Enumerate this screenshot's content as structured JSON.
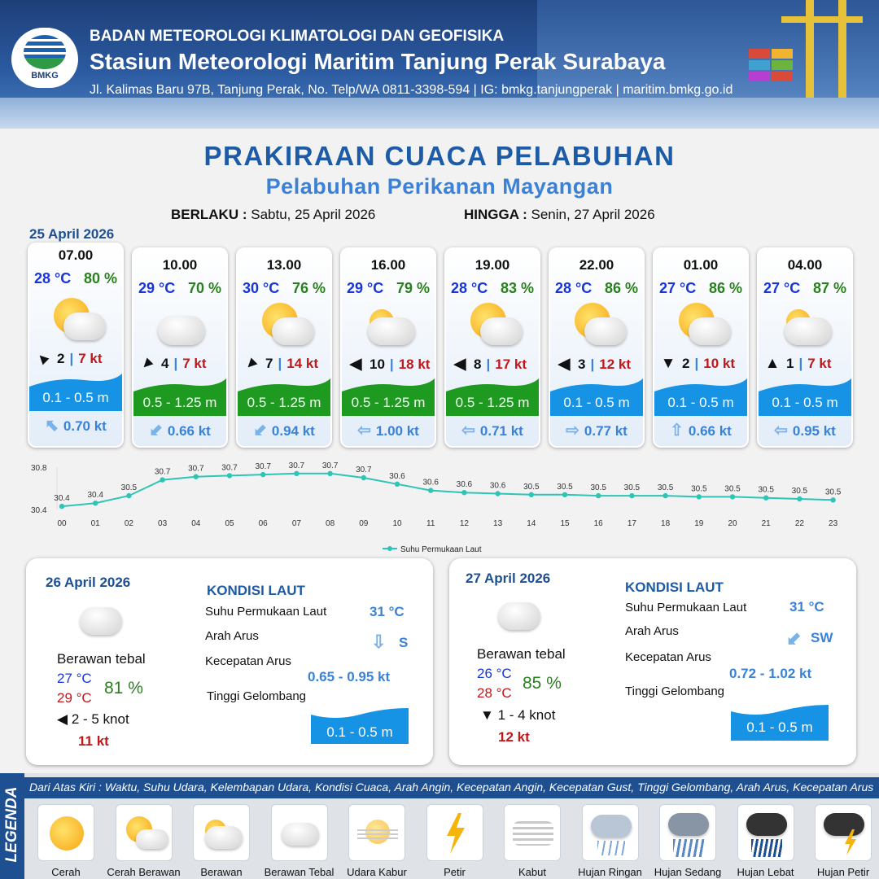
{
  "header": {
    "org": "BADAN METEOROLOGI KLIMATOLOGI DAN GEOFISIKA",
    "station": "Stasiun Meteorologi Maritim Tanjung Perak Surabaya",
    "address": "Jl. Kalimas Baru 97B, Tanjung Perak, No. Telp/WA 0811-3398-594 | IG: bmkg.tanjungperak | maritim.bmkg.go.id",
    "logo_text": "BMKG"
  },
  "title": "PRAKIRAAN CUACA PELABUHAN",
  "subtitle": "Pelabuhan Perikanan Mayangan",
  "validity": {
    "from_label": "BERLAKU :",
    "from_value": "Sabtu, 25 April 2026",
    "to_label": "HINGGA :",
    "to_value": "Senin, 27 April 2026"
  },
  "day1_date": "25 April 2026",
  "forecasts": [
    {
      "time": "07.00",
      "temp": "28 °C",
      "hum": "80 %",
      "cond": "cerah-berawan",
      "wind_dir": "NW",
      "wind_icon": "▲",
      "wind": "2",
      "gust": "7 kt",
      "wave": "0.1 - 0.5 m",
      "wave_color": "#1793e6",
      "cur_icon": "⬉",
      "current": "0.70 kt"
    },
    {
      "time": "10.00",
      "temp": "29 °C",
      "hum": "70 %",
      "cond": "berawan-tebal",
      "wind_dir": "SW",
      "wind_icon": "▲",
      "wind": "4",
      "gust": "7 kt",
      "wave": "0.5 - 1.25 m",
      "wave_color": "#1e9a20",
      "cur_icon": "⬋",
      "current": "0.66 kt"
    },
    {
      "time": "13.00",
      "temp": "30 °C",
      "hum": "76 %",
      "cond": "cerah-berawan",
      "wind_dir": "SW",
      "wind_icon": "▲",
      "wind": "7",
      "gust": "14 kt",
      "wave": "0.5 - 1.25 m",
      "wave_color": "#1e9a20",
      "cur_icon": "⬋",
      "current": "0.94 kt"
    },
    {
      "time": "16.00",
      "temp": "29 °C",
      "hum": "79 %",
      "cond": "berawan",
      "wind_dir": "W",
      "wind_icon": "◀",
      "wind": "10",
      "gust": "18 kt",
      "wave": "0.5 - 1.25 m",
      "wave_color": "#1e9a20",
      "cur_icon": "⇦",
      "current": "1.00 kt"
    },
    {
      "time": "19.00",
      "temp": "28 °C",
      "hum": "83 %",
      "cond": "cerah-berawan",
      "wind_dir": "W",
      "wind_icon": "◀",
      "wind": "8",
      "gust": "17 kt",
      "wave": "0.5 - 1.25 m",
      "wave_color": "#1e9a20",
      "cur_icon": "⇦",
      "current": "0.71 kt"
    },
    {
      "time": "22.00",
      "temp": "28 °C",
      "hum": "86 %",
      "cond": "cerah-berawan",
      "wind_dir": "W",
      "wind_icon": "◀",
      "wind": "3",
      "gust": "12 kt",
      "wave": "0.1 - 0.5 m",
      "wave_color": "#1793e6",
      "cur_icon": "⇨",
      "current": "0.77 kt"
    },
    {
      "time": "01.00",
      "temp": "27 °C",
      "hum": "86 %",
      "cond": "cerah-berawan",
      "wind_dir": "S",
      "wind_icon": "▼",
      "wind": "2",
      "gust": "10 kt",
      "wave": "0.1 - 0.5 m",
      "wave_color": "#1793e6",
      "cur_icon": "⇧",
      "current": "0.66 kt"
    },
    {
      "time": "04.00",
      "temp": "27 °C",
      "hum": "87 %",
      "cond": "berawan",
      "wind_dir": "N",
      "wind_icon": "▲",
      "wind": "1",
      "gust": "7 kt",
      "wave": "0.1 - 0.5 m",
      "wave_color": "#1793e6",
      "cur_icon": "⇦",
      "current": "0.95 kt"
    }
  ],
  "chart_data": {
    "type": "line",
    "x": [
      "00",
      "01",
      "02",
      "03",
      "04",
      "05",
      "06",
      "07",
      "08",
      "09",
      "10",
      "11",
      "12",
      "13",
      "14",
      "15",
      "16",
      "17",
      "18",
      "19",
      "20",
      "21",
      "22",
      "23"
    ],
    "series": [
      {
        "name": "Suhu Permukaan Laut",
        "values": [
          30.4,
          30.4,
          30.5,
          30.7,
          30.7,
          30.7,
          30.7,
          30.7,
          30.7,
          30.7,
          30.6,
          30.6,
          30.6,
          30.6,
          30.5,
          30.5,
          30.5,
          30.5,
          30.5,
          30.5,
          30.5,
          30.5,
          30.5,
          30.5
        ],
        "shape": [
          30.43,
          30.46,
          30.53,
          30.68,
          30.71,
          30.72,
          30.73,
          30.74,
          30.74,
          30.7,
          30.64,
          30.58,
          30.56,
          30.55,
          30.54,
          30.54,
          30.53,
          30.53,
          30.53,
          30.52,
          30.52,
          30.51,
          30.5,
          30.49
        ],
        "labels": [
          "30.4",
          "30.4",
          "30.5",
          "30.7",
          "30.7",
          "30.7",
          "30.7",
          "30.7",
          "30.7",
          "30.7",
          "30.6",
          "30.6",
          "30.6",
          "30.6",
          "30.5",
          "30.5",
          "30.5",
          "30.5",
          "30.5",
          "30.5",
          "30.5",
          "30.5",
          "30.5",
          "30.5"
        ]
      }
    ],
    "yticks": [
      "30.8",
      "30.4"
    ],
    "ylim": [
      30.4,
      30.8
    ],
    "color": "#2ec4b6",
    "legend": "Suhu Permukaan Laut"
  },
  "days": [
    {
      "date": "26 April 2026",
      "cond": "Berawan tebal",
      "tmin": "27 °C",
      "tmax": "29 °C",
      "hum": "81 %",
      "wind_icon": "◀",
      "wind": "2  - 5 knot",
      "gust": "11 kt",
      "kondisi": "KONDISI LAUT",
      "sst_label": "Suhu Permukaan Laut",
      "sst": "31 °C",
      "dir_label": "Arah Arus",
      "cur_icon": "⇩",
      "dir": "S",
      "speed_label": "Kecepatan Arus",
      "speed": "0.65  - 0.95 kt",
      "wave_label": "Tinggi Gelombang",
      "wave": "0.1 - 0.5 m"
    },
    {
      "date": "27 April 2026",
      "cond": "Berawan tebal",
      "tmin": "26 °C",
      "tmax": "28 °C",
      "hum": "85 %",
      "wind_icon": "▼",
      "wind": "1  - 4 knot",
      "gust": "12 kt",
      "kondisi": "KONDISI LAUT",
      "sst_label": "Suhu Permukaan Laut",
      "sst": "31 °C",
      "dir_label": "Arah Arus",
      "cur_icon": "⬋",
      "dir": "SW",
      "speed_label": "Kecepatan Arus",
      "speed": "0.72  - 1.02 kt",
      "wave_label": "Tinggi Gelombang",
      "wave": "0.1 - 0.5 m"
    }
  ],
  "legend": {
    "title": "LEGENDA",
    "caption": "Dari Atas Kiri : Waktu, Suhu Udara, Kelembapan Udara, Kondisi Cuaca, Arah Angin, Kecepatan Angin, Kecepatan Gust, Tinggi Gelombang, Arah Arus, Kecepatan Arus",
    "items": [
      "Cerah",
      "Cerah Berawan",
      "Berawan",
      "Berawan Tebal",
      "Udara Kabur",
      "Petir",
      "Kabut",
      "Hujan Ringan",
      "Hujan Sedang",
      "Hujan Lebat",
      "Hujan Petir"
    ]
  }
}
